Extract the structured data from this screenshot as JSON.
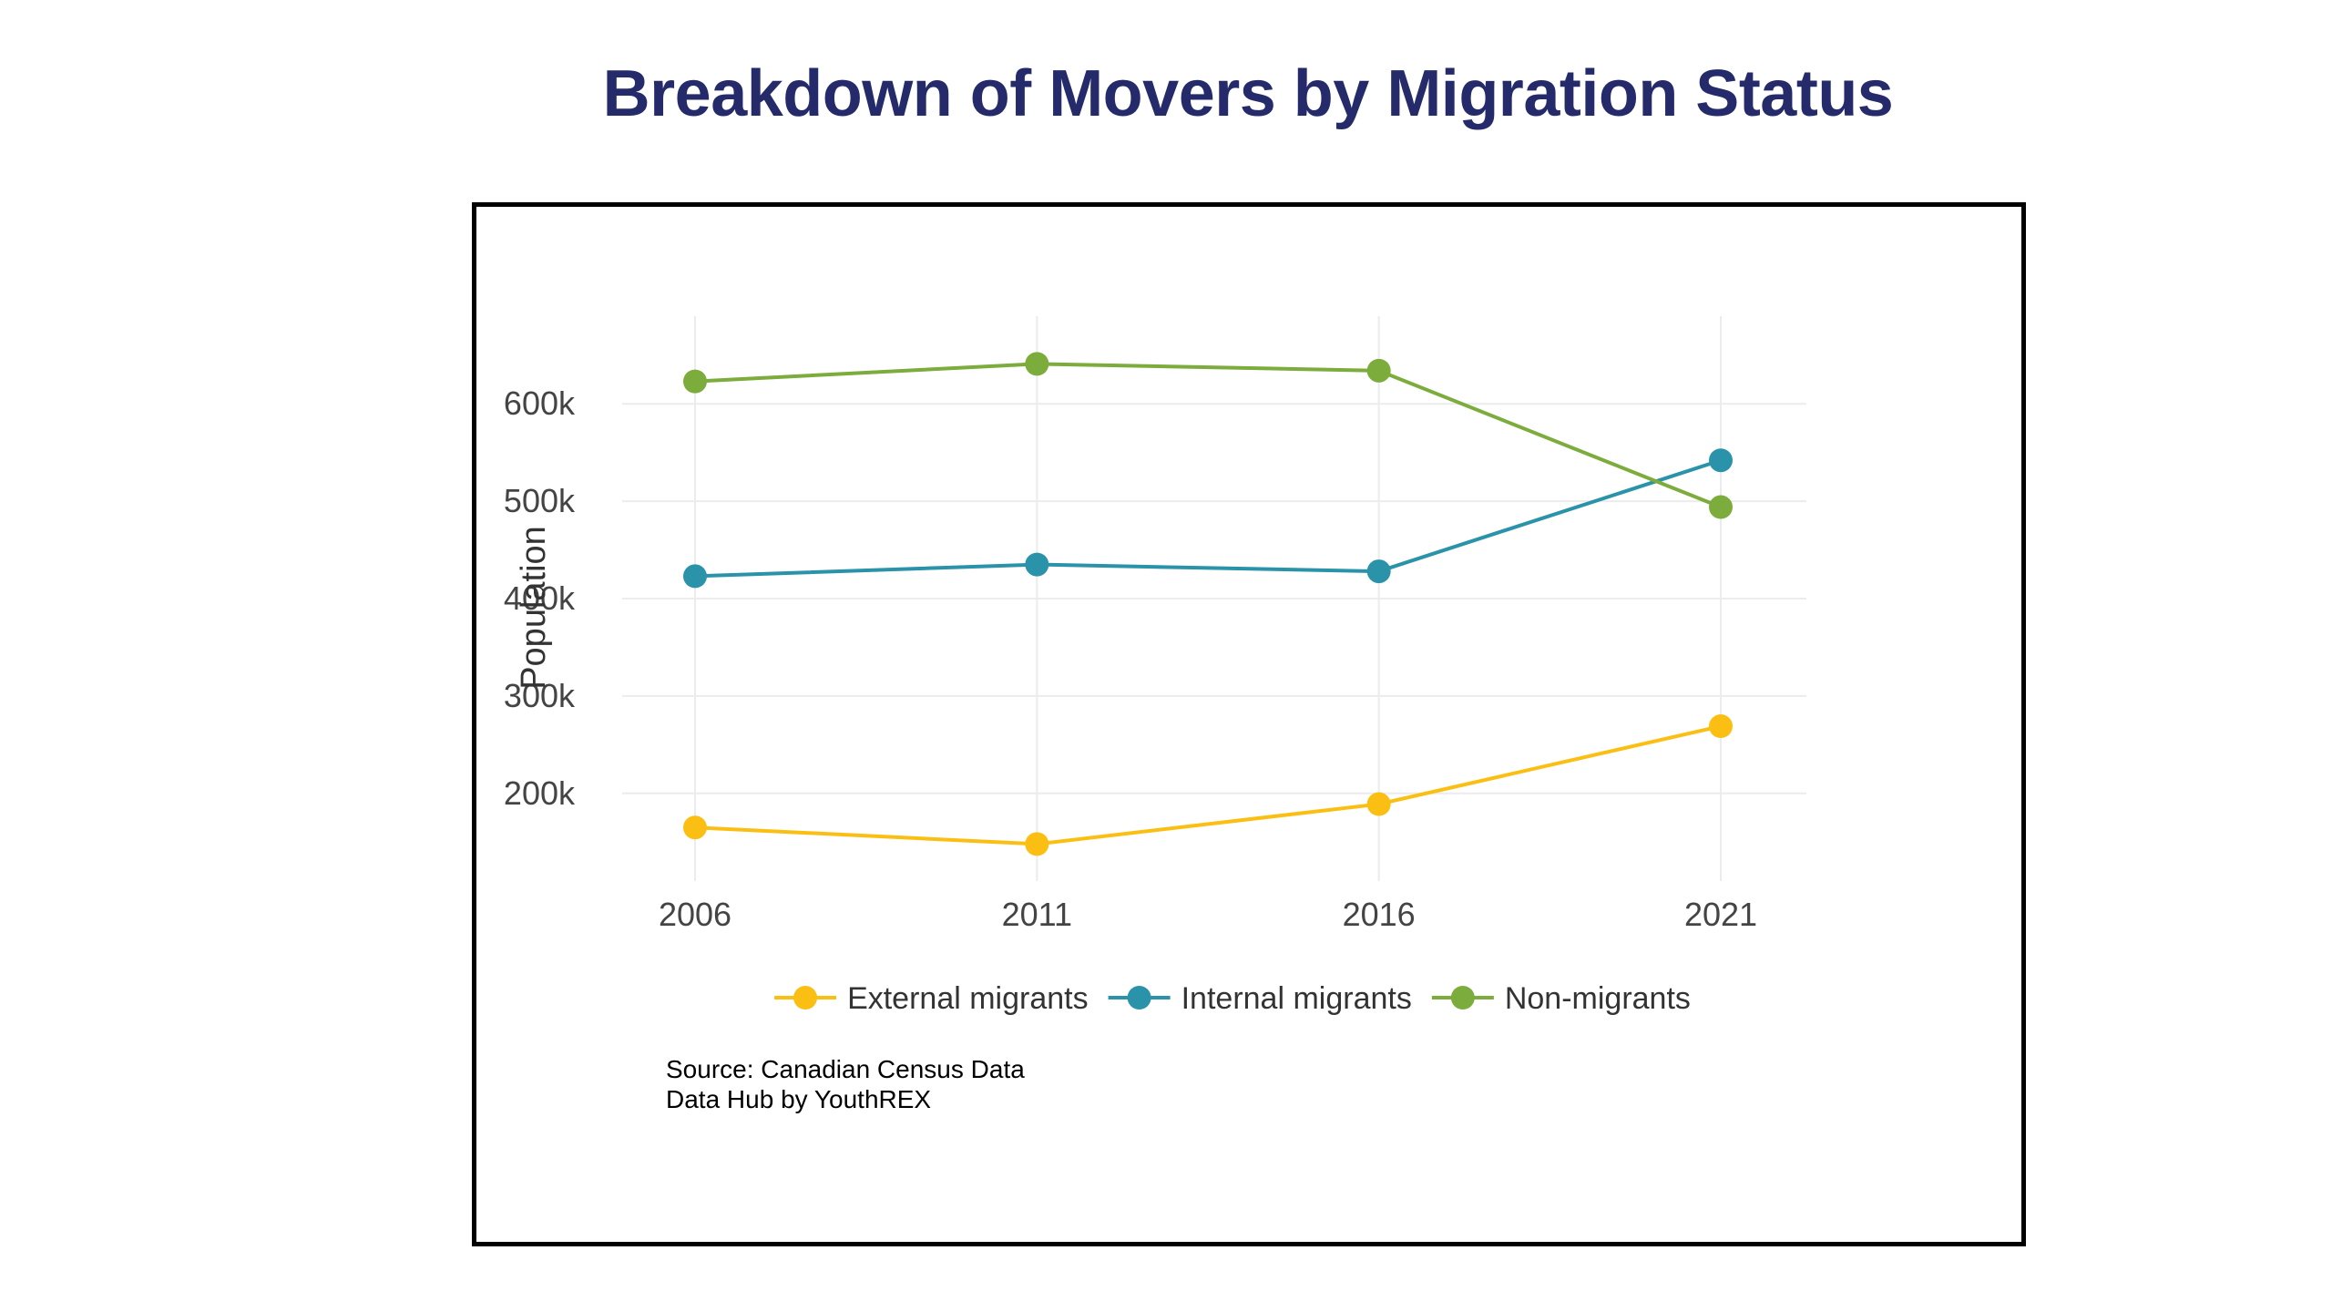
{
  "title": "Breakdown of Movers by Migration Status",
  "source_lines": [
    "Source: Canadian Census Data",
    "Data Hub by YouthREX"
  ],
  "chart_data": {
    "type": "line",
    "title": "Breakdown of Movers by Migration Status",
    "xlabel": "",
    "ylabel": "Population",
    "x": [
      "2006",
      "2011",
      "2016",
      "2021"
    ],
    "ylim": [
      110000,
      690000
    ],
    "yticks": [
      200000,
      300000,
      400000,
      500000,
      600000
    ],
    "ytick_labels": [
      "200k",
      "300k",
      "400k",
      "500k",
      "600k"
    ],
    "grid": true,
    "legend_position": "bottom",
    "series": [
      {
        "name": "External migrants",
        "color": "#fbbf14",
        "values": [
          165000,
          148000,
          189000,
          269000
        ]
      },
      {
        "name": "Internal migrants",
        "color": "#2b93a9",
        "values": [
          423000,
          435000,
          428000,
          542000
        ]
      },
      {
        "name": "Non-migrants",
        "color": "#7cac3c",
        "values": [
          623000,
          641000,
          634000,
          494000
        ]
      }
    ]
  }
}
